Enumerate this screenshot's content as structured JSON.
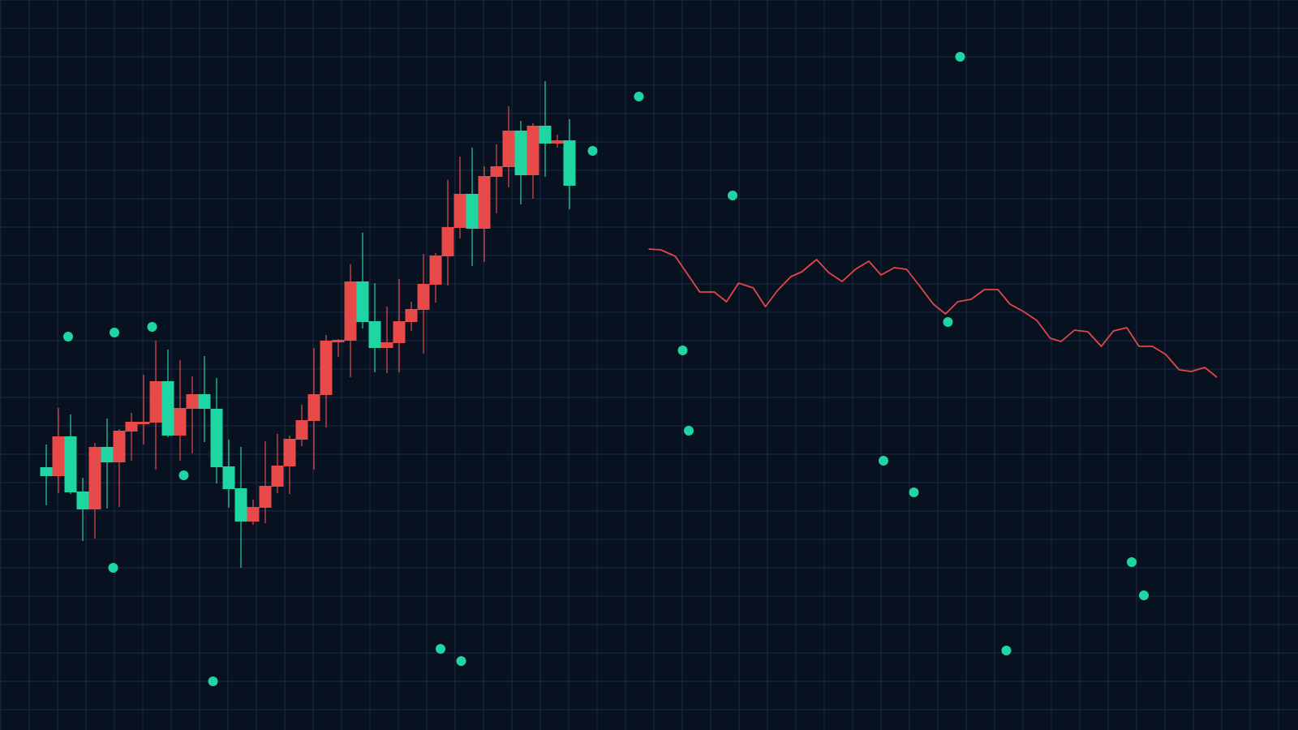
{
  "chart_data": {
    "type": "candlestick",
    "title": "",
    "xlabel": "",
    "ylabel": "",
    "grid": true,
    "legend": "none",
    "colors": {
      "background": "#08111f",
      "grid": "#1b2b4a",
      "up": "#e84a4a",
      "down": "#1fd6a3",
      "line": "#e04848",
      "points": "#1fd6a3"
    },
    "candles": [
      {
        "o": 32.4,
        "h": 35.2,
        "l": 27.7,
        "c": 31.3
      },
      {
        "o": 31.3,
        "h": 39.7,
        "l": 29.2,
        "c": 36.2
      },
      {
        "o": 36.2,
        "h": 38.9,
        "l": 29.1,
        "c": 29.3
      },
      {
        "o": 29.4,
        "h": 31.1,
        "l": 23.3,
        "c": 27.2
      },
      {
        "o": 27.2,
        "h": 35.4,
        "l": 23.6,
        "c": 34.9
      },
      {
        "o": 34.9,
        "h": 38.4,
        "l": 27.3,
        "c": 33.0
      },
      {
        "o": 33.0,
        "h": 37.1,
        "l": 27.5,
        "c": 36.9
      },
      {
        "o": 36.8,
        "h": 39.1,
        "l": 33.2,
        "c": 38.0
      },
      {
        "o": 37.7,
        "h": 43.8,
        "l": 35.2,
        "c": 38.0
      },
      {
        "o": 37.9,
        "h": 48.0,
        "l": 32.1,
        "c": 43.0
      },
      {
        "o": 43.0,
        "h": 46.9,
        "l": 36.1,
        "c": 36.3
      },
      {
        "o": 36.3,
        "h": 45.6,
        "l": 33.2,
        "c": 39.7
      },
      {
        "o": 39.6,
        "h": 43.6,
        "l": 34.1,
        "c": 41.4
      },
      {
        "o": 41.4,
        "h": 46.1,
        "l": 35.5,
        "c": 39.6
      },
      {
        "o": 39.6,
        "h": 43.4,
        "l": 30.4,
        "c": 32.4
      },
      {
        "o": 32.5,
        "h": 35.8,
        "l": 27.4,
        "c": 29.7
      },
      {
        "o": 29.8,
        "h": 34.9,
        "l": 20.0,
        "c": 25.7
      },
      {
        "o": 25.7,
        "h": 28.4,
        "l": 25.3,
        "c": 27.5
      },
      {
        "o": 27.4,
        "h": 35.6,
        "l": 25.5,
        "c": 30.1
      },
      {
        "o": 30.0,
        "h": 36.5,
        "l": 29.2,
        "c": 32.6
      },
      {
        "o": 32.5,
        "h": 36.3,
        "l": 29.1,
        "c": 35.9
      },
      {
        "o": 35.8,
        "h": 40.1,
        "l": 35.0,
        "c": 38.2
      },
      {
        "o": 38.1,
        "h": 47.1,
        "l": 32.1,
        "c": 41.4
      },
      {
        "o": 41.3,
        "h": 48.7,
        "l": 37.3,
        "c": 48.0
      },
      {
        "o": 47.8,
        "h": 48.2,
        "l": 46.0,
        "c": 48.1
      },
      {
        "o": 48.0,
        "h": 57.4,
        "l": 43.5,
        "c": 55.3
      },
      {
        "o": 55.3,
        "h": 61.3,
        "l": 49.5,
        "c": 50.3
      },
      {
        "o": 50.4,
        "h": 55.1,
        "l": 44.1,
        "c": 47.1
      },
      {
        "o": 47.1,
        "h": 52.2,
        "l": 44.0,
        "c": 47.8
      },
      {
        "o": 47.7,
        "h": 55.6,
        "l": 44.1,
        "c": 50.4
      },
      {
        "o": 50.3,
        "h": 52.8,
        "l": 49.2,
        "c": 51.9
      },
      {
        "o": 51.8,
        "h": 58.7,
        "l": 46.4,
        "c": 55.0
      },
      {
        "o": 54.9,
        "h": 58.8,
        "l": 52.7,
        "c": 58.5
      },
      {
        "o": 58.4,
        "h": 67.8,
        "l": 54.8,
        "c": 62.0
      },
      {
        "o": 61.9,
        "h": 70.7,
        "l": 60.6,
        "c": 66.1
      },
      {
        "o": 66.1,
        "h": 71.8,
        "l": 57.2,
        "c": 61.8
      },
      {
        "o": 61.8,
        "h": 69.5,
        "l": 57.7,
        "c": 68.3
      },
      {
        "o": 68.2,
        "h": 72.2,
        "l": 63.7,
        "c": 69.5
      },
      {
        "o": 69.4,
        "h": 76.9,
        "l": 66.9,
        "c": 73.9
      },
      {
        "o": 73.9,
        "h": 75.1,
        "l": 64.8,
        "c": 68.4
      },
      {
        "o": 68.4,
        "h": 74.8,
        "l": 65.5,
        "c": 74.5
      },
      {
        "o": 74.5,
        "h": 80.0,
        "l": 68.2,
        "c": 72.3
      },
      {
        "o": 72.3,
        "h": 73.4,
        "l": 71.8,
        "c": 72.7
      },
      {
        "o": 72.7,
        "h": 75.3,
        "l": 64.2,
        "c": 67.1
      }
    ],
    "line_series": [
      [
        49.5,
        59.3
      ],
      [
        50.5,
        59.2
      ],
      [
        51.7,
        58.4
      ],
      [
        53.7,
        54.0
      ],
      [
        54.9,
        54.0
      ],
      [
        55.9,
        52.8
      ],
      [
        56.9,
        55.1
      ],
      [
        58.1,
        54.5
      ],
      [
        59.1,
        52.2
      ],
      [
        60.1,
        54.2
      ],
      [
        61.2,
        55.9
      ],
      [
        62.1,
        56.5
      ],
      [
        63.3,
        58.0
      ],
      [
        64.3,
        56.4
      ],
      [
        65.4,
        55.3
      ],
      [
        66.5,
        56.8
      ],
      [
        67.6,
        57.8
      ],
      [
        68.6,
        56.1
      ],
      [
        69.7,
        57.0
      ],
      [
        70.7,
        56.8
      ],
      [
        71.9,
        54.5
      ],
      [
        72.9,
        52.5
      ],
      [
        73.9,
        51.3
      ],
      [
        74.9,
        52.8
      ],
      [
        76.0,
        53.1
      ],
      [
        77.1,
        54.3
      ],
      [
        78.2,
        54.3
      ],
      [
        79.2,
        52.5
      ],
      [
        80.3,
        51.6
      ],
      [
        81.4,
        50.5
      ],
      [
        82.5,
        48.3
      ],
      [
        83.4,
        47.9
      ],
      [
        84.5,
        49.3
      ],
      [
        85.6,
        49.1
      ],
      [
        86.7,
        47.3
      ],
      [
        87.7,
        49.2
      ],
      [
        88.8,
        49.6
      ],
      [
        89.8,
        47.3
      ],
      [
        90.9,
        47.3
      ],
      [
        92.0,
        46.3
      ],
      [
        93.1,
        44.4
      ],
      [
        94.1,
        44.2
      ],
      [
        95.2,
        44.7
      ],
      [
        96.2,
        43.5
      ]
    ],
    "scatter_points": [
      [
        1.8,
        48.5
      ],
      [
        5.6,
        49.0
      ],
      [
        8.7,
        49.7
      ],
      [
        11.3,
        31.4
      ],
      [
        5.5,
        20.0
      ],
      [
        13.7,
        6.0
      ],
      [
        32.4,
        10.0
      ],
      [
        34.1,
        8.5
      ],
      [
        44.9,
        71.4
      ],
      [
        48.7,
        78.1
      ],
      [
        56.4,
        65.9
      ],
      [
        52.3,
        46.8
      ],
      [
        52.8,
        36.9
      ],
      [
        68.8,
        33.2
      ],
      [
        71.3,
        29.3
      ],
      [
        74.1,
        50.3
      ],
      [
        75.1,
        83.0
      ],
      [
        89.2,
        20.7
      ],
      [
        90.2,
        16.6
      ],
      [
        78.9,
        9.8
      ]
    ]
  }
}
